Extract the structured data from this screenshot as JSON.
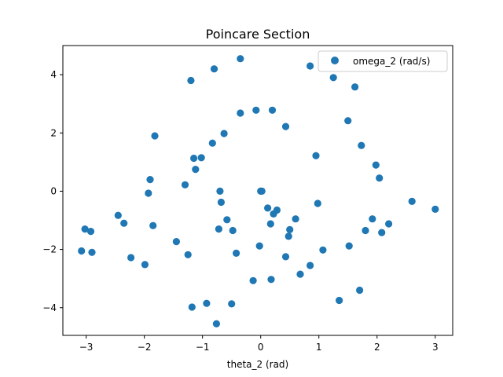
{
  "chart_data": {
    "type": "scatter",
    "title": "Poincare Section",
    "xlabel": "theta_2 (rad)",
    "ylabel": "",
    "xlim": [
      -3.4,
      3.3
    ],
    "ylim": [
      -4.95,
      5.0
    ],
    "xticks": [
      -3,
      -2,
      -1,
      0,
      1,
      2,
      3
    ],
    "yticks": [
      -4,
      -2,
      0,
      2,
      4
    ],
    "grid": false,
    "legend_position": "top-right",
    "series": [
      {
        "name": "omega_2 (rad/s)",
        "color": "#1f77b4",
        "points": [
          [
            -0.35,
            4.55
          ],
          [
            -0.8,
            4.2
          ],
          [
            -1.2,
            3.8
          ],
          [
            0.85,
            4.3
          ],
          [
            1.25,
            3.9
          ],
          [
            1.62,
            3.58
          ],
          [
            -0.35,
            2.68
          ],
          [
            -0.08,
            2.78
          ],
          [
            0.2,
            2.78
          ],
          [
            0.43,
            2.22
          ],
          [
            1.5,
            2.42
          ],
          [
            -1.82,
            1.9
          ],
          [
            -0.63,
            1.98
          ],
          [
            -0.83,
            1.65
          ],
          [
            0.95,
            1.22
          ],
          [
            1.73,
            1.57
          ],
          [
            -1.15,
            1.13
          ],
          [
            -1.02,
            1.15
          ],
          [
            -1.12,
            0.75
          ],
          [
            1.98,
            0.9
          ],
          [
            2.04,
            0.45
          ],
          [
            -1.9,
            0.4
          ],
          [
            -1.3,
            0.22
          ],
          [
            -1.93,
            -0.07
          ],
          [
            -0.7,
            0.0
          ],
          [
            0.0,
            0.0
          ],
          [
            0.02,
            0.0
          ],
          [
            -0.68,
            -0.38
          ],
          [
            0.12,
            -0.58
          ],
          [
            0.22,
            -0.78
          ],
          [
            0.28,
            -0.65
          ],
          [
            0.6,
            -0.95
          ],
          [
            0.98,
            -0.42
          ],
          [
            2.6,
            -0.35
          ],
          [
            3.0,
            -0.62
          ],
          [
            -2.45,
            -0.83
          ],
          [
            -2.35,
            -1.1
          ],
          [
            -1.85,
            -1.18
          ],
          [
            -0.58,
            -0.98
          ],
          [
            -0.72,
            -1.3
          ],
          [
            -0.48,
            -1.35
          ],
          [
            0.17,
            -1.12
          ],
          [
            0.5,
            -1.32
          ],
          [
            0.48,
            -1.55
          ],
          [
            1.92,
            -0.95
          ],
          [
            1.8,
            -1.35
          ],
          [
            2.08,
            -1.42
          ],
          [
            2.2,
            -1.12
          ],
          [
            -3.02,
            -1.3
          ],
          [
            -2.92,
            -1.38
          ],
          [
            -1.45,
            -1.73
          ],
          [
            -3.08,
            -2.05
          ],
          [
            -2.9,
            -2.1
          ],
          [
            -2.23,
            -2.28
          ],
          [
            -1.25,
            -2.18
          ],
          [
            -0.42,
            -2.13
          ],
          [
            -0.02,
            -1.88
          ],
          [
            0.43,
            -2.25
          ],
          [
            1.07,
            -2.02
          ],
          [
            1.52,
            -1.88
          ],
          [
            -1.99,
            -2.52
          ],
          [
            0.85,
            -2.55
          ],
          [
            0.68,
            -2.85
          ],
          [
            -0.13,
            -3.07
          ],
          [
            0.18,
            -3.03
          ],
          [
            1.7,
            -3.4
          ],
          [
            1.35,
            -3.75
          ],
          [
            -0.93,
            -3.85
          ],
          [
            -0.5,
            -3.87
          ],
          [
            -1.18,
            -3.98
          ],
          [
            -0.76,
            -4.55
          ]
        ]
      }
    ]
  }
}
